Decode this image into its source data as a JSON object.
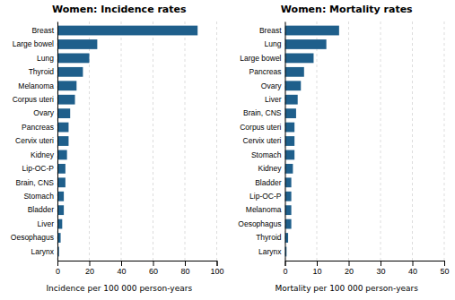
{
  "chart_data": [
    {
      "type": "bar",
      "orientation": "horizontal",
      "title": "Women: Incidence rates",
      "xlabel": "Incidence per 100 000 person-years",
      "categories": [
        "Breast",
        "Large bowel",
        "Lung",
        "Thyroid",
        "Melanoma",
        "Corpus uteri",
        "Ovary",
        "Pancreas",
        "Cervix uteri",
        "Kidney",
        "Lip-OC-P",
        "Brain, CNS",
        "Stomach",
        "Bladder",
        "Liver",
        "Oesophagus",
        "Larynx"
      ],
      "values": [
        88,
        25,
        20,
        16,
        12,
        11,
        8,
        7,
        7,
        6,
        5,
        5,
        4,
        4,
        3,
        2,
        1
      ],
      "color": "#1f5f8b",
      "xlim": [
        0,
        100
      ],
      "xticks": [
        0,
        20,
        40,
        60,
        80,
        100
      ],
      "grid": true
    },
    {
      "type": "bar",
      "orientation": "horizontal",
      "title": "Women: Mortality rates",
      "xlabel": "Mortality per 100 000 person-years",
      "categories": [
        "Breast",
        "Lung",
        "Large bowel",
        "Pancreas",
        "Ovary",
        "Liver",
        "Brain, CNS",
        "Corpus uteri",
        "Cervix uteri",
        "Stomach",
        "Kidney",
        "Bladder",
        "Lip-OC-P",
        "Melanoma",
        "Oesophagus",
        "Thyroid",
        "Larynx"
      ],
      "values": [
        17,
        13,
        9,
        6,
        5,
        4,
        3.5,
        3,
        3,
        3,
        2.5,
        2,
        2,
        2,
        2,
        1,
        0.5
      ],
      "color": "#1f5f8b",
      "xlim": [
        0,
        50
      ],
      "xticks": [
        0,
        10,
        20,
        30,
        40,
        50
      ],
      "grid": true
    }
  ]
}
